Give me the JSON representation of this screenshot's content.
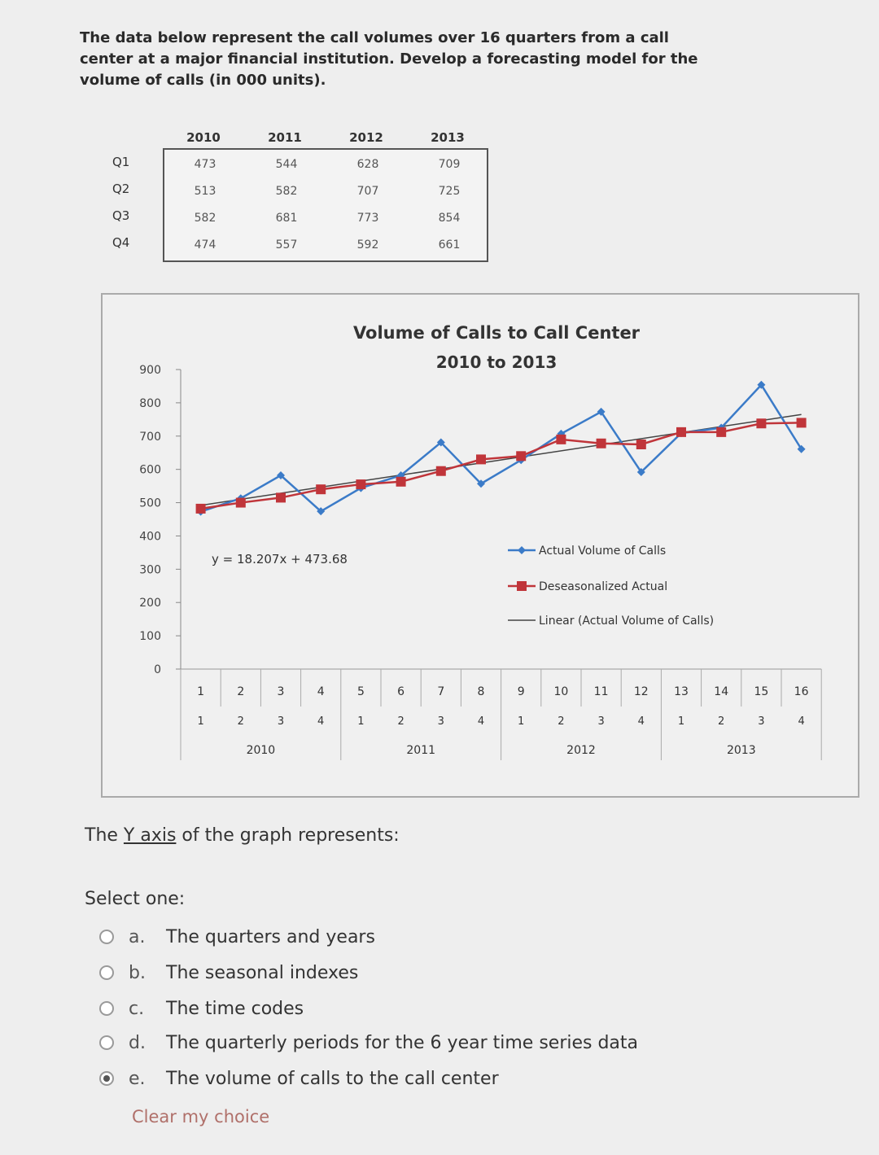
{
  "intro": {
    "line1": "The data below represent the call volumes over 16 quarters from a call",
    "line2": "center at a major financial institution. Develop a forecasting model for the",
    "line3": "volume of calls (in 000 units)."
  },
  "table": {
    "years": [
      "2010",
      "2011",
      "2012",
      "2013"
    ],
    "quarters": [
      "Q1",
      "Q2",
      "Q3",
      "Q4"
    ],
    "rows": [
      [
        "473",
        "544",
        "628",
        "709"
      ],
      [
        "513",
        "582",
        "707",
        "725"
      ],
      [
        "582",
        "681",
        "773",
        "854"
      ],
      [
        "474",
        "557",
        "592",
        "661"
      ]
    ]
  },
  "chart_data": {
    "type": "line",
    "title": "Volume of Calls to Call Center",
    "subtitle": "2010 to 2013",
    "x": [
      1,
      2,
      3,
      4,
      5,
      6,
      7,
      8,
      9,
      10,
      11,
      12,
      13,
      14,
      15,
      16
    ],
    "quarter_labels": [
      "1",
      "2",
      "3",
      "4",
      "1",
      "2",
      "3",
      "4",
      "1",
      "2",
      "3",
      "4",
      "1",
      "2",
      "3",
      "4"
    ],
    "year_labels": [
      "2010",
      "2011",
      "2012",
      "2013"
    ],
    "ylim": [
      0,
      900
    ],
    "yticks": [
      0,
      100,
      200,
      300,
      400,
      500,
      600,
      700,
      800,
      900
    ],
    "series": [
      {
        "name": "Actual Volume of Calls",
        "color": "#3b7bc8",
        "marker": "diamond",
        "values": [
          473,
          513,
          582,
          474,
          544,
          582,
          681,
          557,
          628,
          707,
          773,
          592,
          709,
          725,
          854,
          661
        ]
      },
      {
        "name": "Deseasonalized Actual",
        "color": "#c0353a",
        "marker": "square",
        "values": [
          482,
          500,
          515,
          540,
          555,
          563,
          595,
          630,
          640,
          690,
          678,
          675,
          712,
          712,
          738,
          740
        ]
      },
      {
        "name": "Linear (Actual Volume of Calls)",
        "color": "#444444",
        "marker": "none",
        "intercept": 473.68,
        "slope": 18.207
      }
    ],
    "equation": "y = 18.207x + 473.68",
    "legend_position": "right",
    "grid": false
  },
  "question": {
    "prefix": "The ",
    "underlined": "Y axis",
    "suffix": " of the graph represents:",
    "select_one": "Select one:",
    "options": [
      {
        "letter": "a.",
        "text": "The quarters and years",
        "selected": false
      },
      {
        "letter": "b.",
        "text": "The seasonal indexes",
        "selected": false
      },
      {
        "letter": "c.",
        "text": "The time codes",
        "selected": false
      },
      {
        "letter": "d.",
        "text": "The quarterly periods for the 6 year time series data",
        "selected": false
      },
      {
        "letter": "e.",
        "text": "The volume of calls to the call center",
        "selected": true
      }
    ],
    "clear_choice": "Clear my choice"
  }
}
